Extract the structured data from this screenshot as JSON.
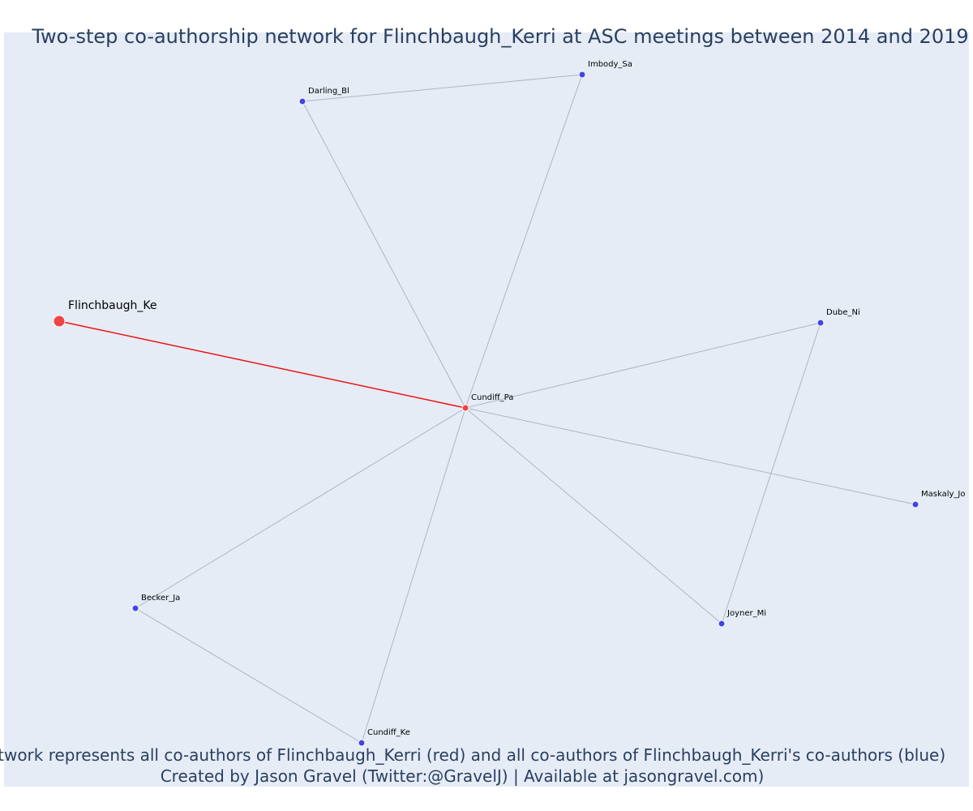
{
  "title": "Two-step co-authorship network for Flinchbaugh_Kerri at ASC meetings between 2014 and 2019",
  "nodes": [
    {
      "label": "Flinchbaugh_Ke",
      "color": "#ef4444"
    },
    {
      "label": "Cundiff_Pa",
      "color": "#ef4444"
    },
    {
      "label": "Darling_Bl",
      "color": "#4444e6"
    },
    {
      "label": "Imbody_Sa",
      "color": "#4444e6"
    },
    {
      "label": "Dube_Ni",
      "color": "#4444e6"
    },
    {
      "label": "Maskaly_Jo",
      "color": "#4444e6"
    },
    {
      "label": "Joyner_Mi",
      "color": "#4444e6"
    },
    {
      "label": "Cundiff_Ke",
      "color": "#4444e6"
    },
    {
      "label": "Becker_Ja",
      "color": "#4444e6"
    }
  ],
  "footer": [
    "Network represents all co-authors of Flinchbaugh_Kerri (red) and all co-authors of Flinchbaugh_Kerri's co-authors (blue)",
    "Created by Jason Gravel (Twitter:@GravelJ) | Available at jasongravel.com)"
  ]
}
